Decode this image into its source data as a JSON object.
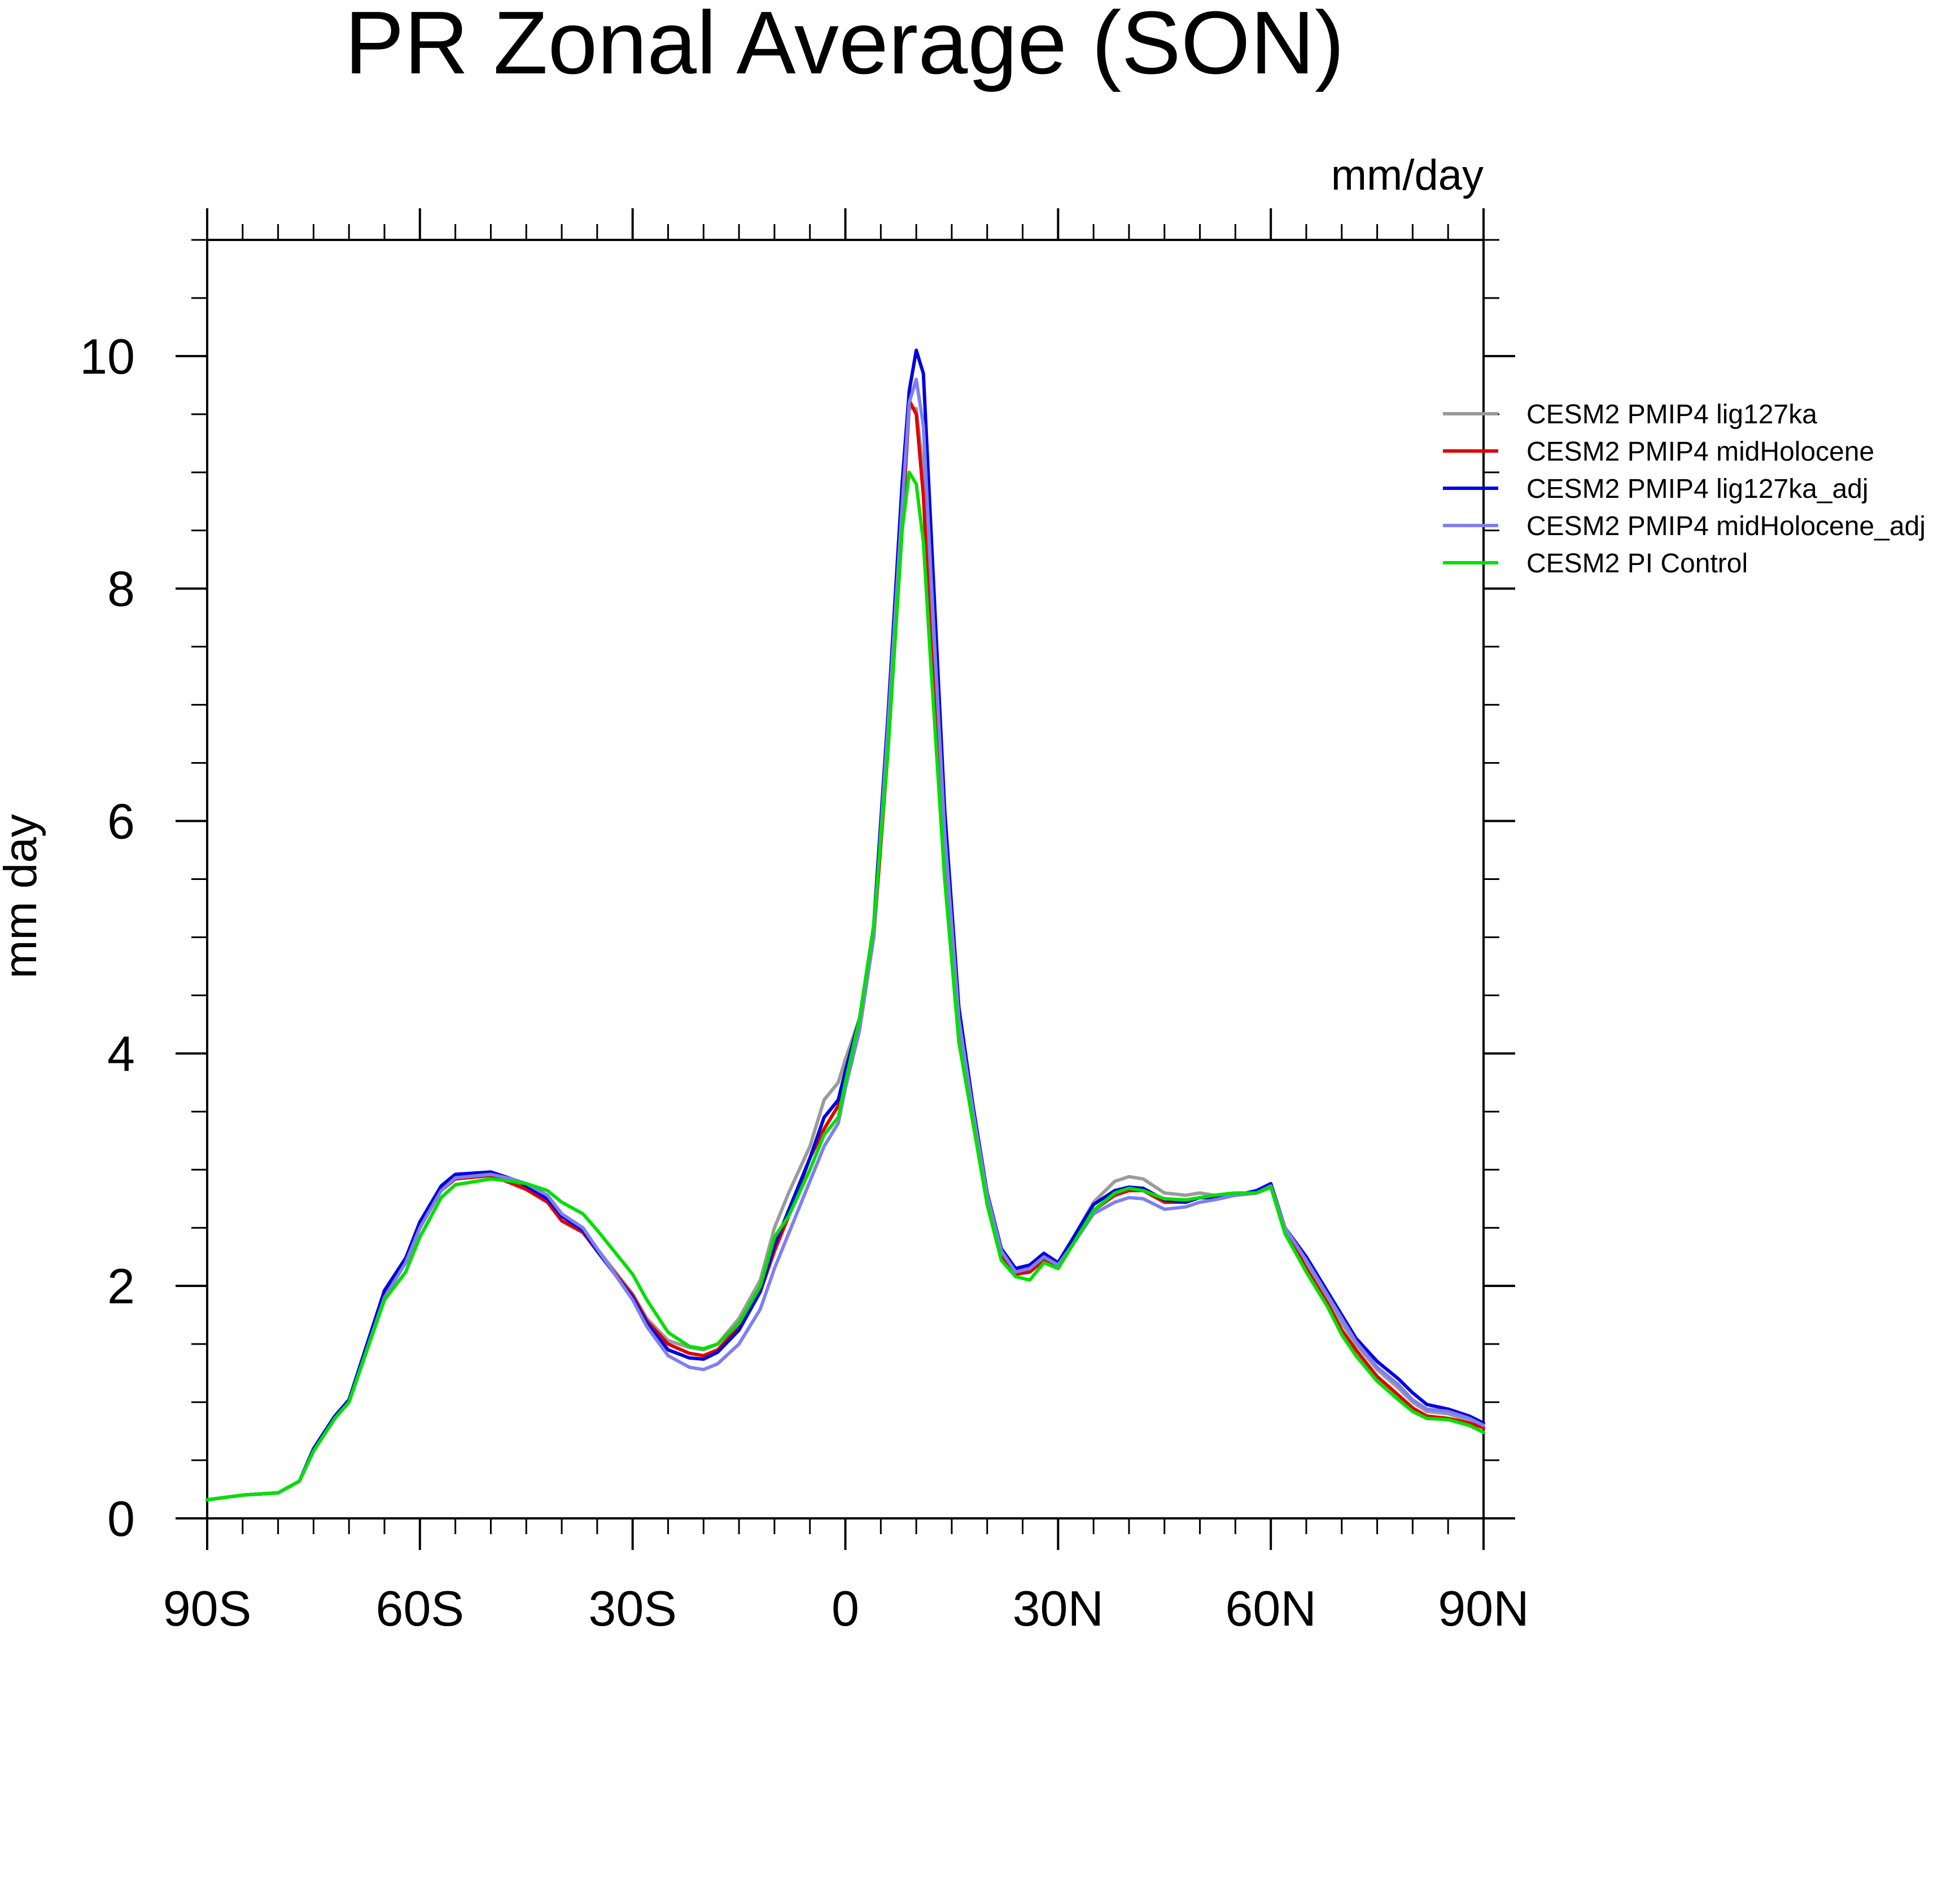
{
  "chart_data": {
    "type": "line",
    "title": "PR Zonal Average (SON)",
    "units": "mm/day",
    "ylabel": "mm day",
    "xlabel": "",
    "xlim": [
      -90,
      90
    ],
    "ylim": [
      0,
      11
    ],
    "grid": false,
    "legend_position": "right",
    "x_ticks": [
      {
        "value": -90,
        "label": "90S"
      },
      {
        "value": -60,
        "label": "60S"
      },
      {
        "value": -30,
        "label": "30S"
      },
      {
        "value": 0,
        "label": "0"
      },
      {
        "value": 30,
        "label": "30N"
      },
      {
        "value": 60,
        "label": "60N"
      },
      {
        "value": 90,
        "label": "90N"
      }
    ],
    "y_ticks": [
      {
        "value": 0,
        "label": "0"
      },
      {
        "value": 2,
        "label": "2"
      },
      {
        "value": 4,
        "label": "4"
      },
      {
        "value": 6,
        "label": "6"
      },
      {
        "value": 8,
        "label": "8"
      },
      {
        "value": 10,
        "label": "10"
      }
    ],
    "x": [
      -90,
      -85,
      -80,
      -77,
      -75,
      -72,
      -70,
      -65,
      -62,
      -60,
      -57,
      -55,
      -50,
      -47,
      -45,
      -42,
      -40,
      -37,
      -35,
      -30,
      -28,
      -25,
      -22,
      -20,
      -18,
      -15,
      -12,
      -10,
      -8,
      -5,
      -3,
      -1,
      0,
      2,
      4,
      6,
      8,
      9,
      10,
      11,
      12,
      14,
      16,
      18,
      20,
      22,
      24,
      26,
      28,
      30,
      32,
      35,
      38,
      40,
      42,
      45,
      48,
      50,
      52,
      55,
      58,
      60,
      62,
      65,
      68,
      70,
      72,
      75,
      78,
      80,
      82,
      85,
      88,
      90
    ],
    "series": [
      {
        "name": "CESM2 PMIP4 lig127ka",
        "color": "#9b9b9b",
        "values": [
          0.16,
          0.2,
          0.22,
          0.32,
          0.58,
          0.86,
          1.0,
          1.92,
          2.2,
          2.5,
          2.82,
          2.94,
          2.97,
          2.9,
          2.86,
          2.75,
          2.6,
          2.48,
          2.32,
          1.93,
          1.72,
          1.53,
          1.47,
          1.45,
          1.5,
          1.72,
          2.05,
          2.5,
          2.8,
          3.2,
          3.6,
          3.75,
          3.95,
          4.3,
          5.0,
          6.6,
          8.5,
          9.55,
          9.55,
          9.0,
          7.8,
          5.8,
          4.3,
          3.5,
          2.75,
          2.28,
          2.12,
          2.15,
          2.25,
          2.18,
          2.4,
          2.72,
          2.9,
          2.94,
          2.92,
          2.8,
          2.78,
          2.8,
          2.78,
          2.8,
          2.8,
          2.85,
          2.48,
          2.18,
          1.9,
          1.68,
          1.5,
          1.28,
          1.12,
          1.0,
          0.92,
          0.9,
          0.84,
          0.78
        ]
      },
      {
        "name": "CESM2 PMIP4 midHolocene",
        "color": "#e00000",
        "values": [
          0.16,
          0.2,
          0.22,
          0.32,
          0.58,
          0.86,
          1.0,
          1.92,
          2.2,
          2.5,
          2.82,
          2.92,
          2.95,
          2.88,
          2.83,
          2.72,
          2.56,
          2.46,
          2.3,
          1.92,
          1.7,
          1.5,
          1.42,
          1.4,
          1.45,
          1.65,
          1.95,
          2.3,
          2.6,
          3.1,
          3.35,
          3.55,
          3.85,
          4.3,
          5.0,
          6.6,
          8.5,
          9.62,
          9.5,
          8.8,
          7.6,
          5.6,
          4.2,
          3.45,
          2.72,
          2.26,
          2.1,
          2.12,
          2.22,
          2.15,
          2.35,
          2.65,
          2.78,
          2.82,
          2.82,
          2.72,
          2.72,
          2.76,
          2.76,
          2.78,
          2.8,
          2.85,
          2.48,
          2.15,
          1.85,
          1.62,
          1.45,
          1.22,
          1.06,
          0.95,
          0.88,
          0.86,
          0.82,
          0.78
        ]
      },
      {
        "name": "CESM2 PMIP4 lig127ka_adj",
        "color": "#0000e0",
        "values": [
          0.16,
          0.2,
          0.22,
          0.32,
          0.6,
          0.88,
          1.02,
          1.96,
          2.24,
          2.55,
          2.86,
          2.96,
          2.98,
          2.92,
          2.86,
          2.75,
          2.6,
          2.48,
          2.3,
          1.9,
          1.68,
          1.45,
          1.38,
          1.37,
          1.43,
          1.62,
          1.95,
          2.35,
          2.65,
          3.1,
          3.45,
          3.6,
          3.85,
          4.3,
          5.1,
          6.9,
          8.9,
          9.7,
          10.05,
          9.85,
          8.6,
          6.1,
          4.4,
          3.55,
          2.8,
          2.32,
          2.15,
          2.18,
          2.28,
          2.2,
          2.4,
          2.7,
          2.82,
          2.85,
          2.84,
          2.74,
          2.72,
          2.76,
          2.76,
          2.78,
          2.82,
          2.88,
          2.5,
          2.25,
          1.95,
          1.75,
          1.55,
          1.35,
          1.2,
          1.08,
          0.98,
          0.94,
          0.88,
          0.82
        ]
      },
      {
        "name": "CESM2 PMIP4 midHolocene_adj",
        "color": "#7f7ff0",
        "values": [
          0.16,
          0.2,
          0.22,
          0.32,
          0.58,
          0.86,
          1.0,
          1.9,
          2.2,
          2.5,
          2.82,
          2.93,
          2.96,
          2.92,
          2.88,
          2.78,
          2.62,
          2.5,
          2.32,
          1.88,
          1.65,
          1.4,
          1.3,
          1.28,
          1.33,
          1.5,
          1.8,
          2.15,
          2.45,
          2.9,
          3.2,
          3.4,
          3.7,
          4.2,
          5.0,
          6.8,
          8.7,
          9.6,
          9.8,
          9.4,
          8.2,
          5.9,
          4.3,
          3.5,
          2.78,
          2.3,
          2.12,
          2.15,
          2.25,
          2.18,
          2.35,
          2.62,
          2.72,
          2.76,
          2.75,
          2.66,
          2.68,
          2.72,
          2.74,
          2.78,
          2.8,
          2.86,
          2.5,
          2.22,
          1.92,
          1.72,
          1.52,
          1.3,
          1.15,
          1.02,
          0.94,
          0.92,
          0.86,
          0.8
        ]
      },
      {
        "name": "CESM2 PI Control",
        "color": "#00e000",
        "values": [
          0.16,
          0.2,
          0.22,
          0.32,
          0.58,
          0.86,
          1.0,
          1.88,
          2.12,
          2.42,
          2.76,
          2.87,
          2.92,
          2.9,
          2.88,
          2.82,
          2.72,
          2.62,
          2.48,
          2.1,
          1.88,
          1.6,
          1.48,
          1.46,
          1.5,
          1.68,
          2.0,
          2.42,
          2.6,
          3.0,
          3.3,
          3.45,
          3.75,
          4.3,
          5.1,
          6.6,
          8.5,
          9.0,
          8.9,
          8.4,
          7.4,
          5.5,
          4.1,
          3.4,
          2.7,
          2.22,
          2.08,
          2.05,
          2.2,
          2.15,
          2.35,
          2.65,
          2.8,
          2.84,
          2.82,
          2.75,
          2.74,
          2.76,
          2.78,
          2.8,
          2.8,
          2.85,
          2.45,
          2.12,
          1.82,
          1.58,
          1.4,
          1.18,
          1.02,
          0.92,
          0.86,
          0.85,
          0.8,
          0.74
        ]
      }
    ]
  }
}
